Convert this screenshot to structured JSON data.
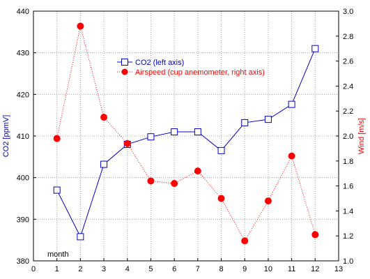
{
  "chart_data": {
    "type": "line",
    "x": [
      1,
      2,
      3,
      4,
      5,
      6,
      7,
      8,
      9,
      10,
      11,
      12
    ],
    "xlim": [
      0,
      13
    ],
    "x_ticks": [
      0,
      1,
      2,
      3,
      4,
      5,
      6,
      7,
      8,
      9,
      10,
      11,
      12,
      13
    ],
    "xlabel": "month",
    "ylabel_left": "CO2 [ppmV]",
    "ylim_left": [
      380,
      440
    ],
    "y_ticks_left": [
      380,
      390,
      400,
      410,
      420,
      430,
      440
    ],
    "ylabel_right": "Wind [m/s]",
    "ylim_right": [
      1.0,
      3.0
    ],
    "y_ticks_right": [
      1.0,
      1.2,
      1.4,
      1.6,
      1.8,
      2.0,
      2.2,
      2.4,
      2.6,
      2.8,
      3.0
    ],
    "grid": true,
    "legend_position": "top-center",
    "series": [
      {
        "name": "CO2 (left axis)",
        "axis": "left",
        "color": "#0000cc",
        "line_style": "solid",
        "marker": "open-square",
        "values": [
          397.0,
          385.8,
          403.2,
          408.0,
          409.8,
          411.0,
          411.0,
          406.5,
          413.2,
          414.0,
          417.6,
          431.0
        ]
      },
      {
        "name": "Airspeed (cup anemometer, right axis)",
        "axis": "right",
        "color": "#ff0000",
        "line_style": "dotted",
        "marker": "filled-circle",
        "values": [
          1.98,
          2.88,
          2.15,
          1.94,
          1.64,
          1.62,
          1.72,
          1.5,
          1.16,
          1.48,
          1.84,
          1.21
        ]
      }
    ]
  }
}
